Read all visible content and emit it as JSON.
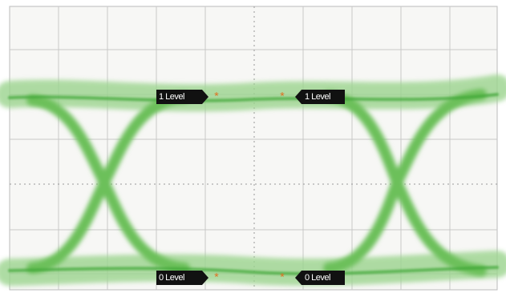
{
  "markers": [
    {
      "label": "1 Level"
    },
    {
      "label": "1 Level"
    },
    {
      "label": "0 Level"
    },
    {
      "label": "0 Level"
    }
  ]
}
